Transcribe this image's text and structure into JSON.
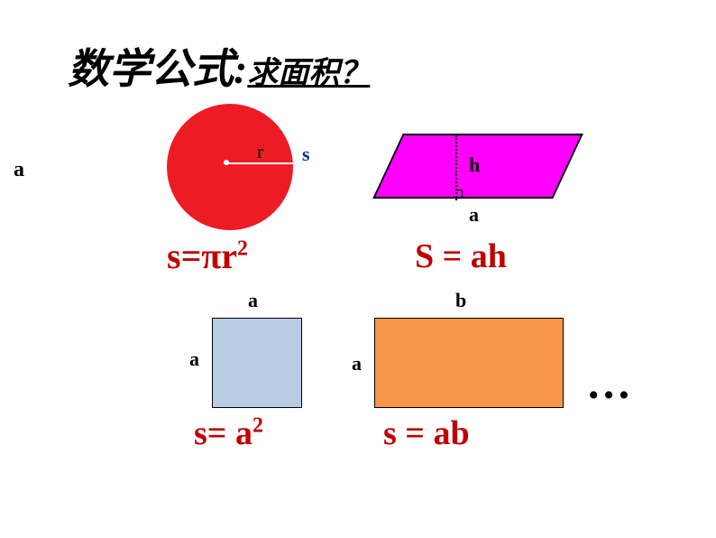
{
  "title": {
    "main": "数学公式:",
    "sub": "求面积？",
    "color": "#000000"
  },
  "leftLabel": {
    "text": "a",
    "color": "#000000"
  },
  "circle": {
    "fill_color": "#ed1c24",
    "radius_label": "r",
    "s_label": "s",
    "s_label_color": "#003399",
    "formula": "s=πr",
    "formula_sup": "2",
    "formula_color": "#c00000"
  },
  "parallelogram": {
    "fill_color": "#ff00ff",
    "h_label": "h",
    "a_label": "a",
    "formula": "S = ah",
    "formula_color": "#c00000"
  },
  "square": {
    "fill_color": "#b8cce4",
    "a_top_label": "a",
    "a_left_label": "a",
    "formula": "s= a",
    "formula_sup": "2",
    "formula_color": "#c00000"
  },
  "rectangle": {
    "fill_color": "#f79646",
    "b_label": "b",
    "a_label": "a",
    "formula": "s = ab",
    "formula_color": "#c00000"
  },
  "dots": {
    "text": "…",
    "color": "#000000"
  }
}
